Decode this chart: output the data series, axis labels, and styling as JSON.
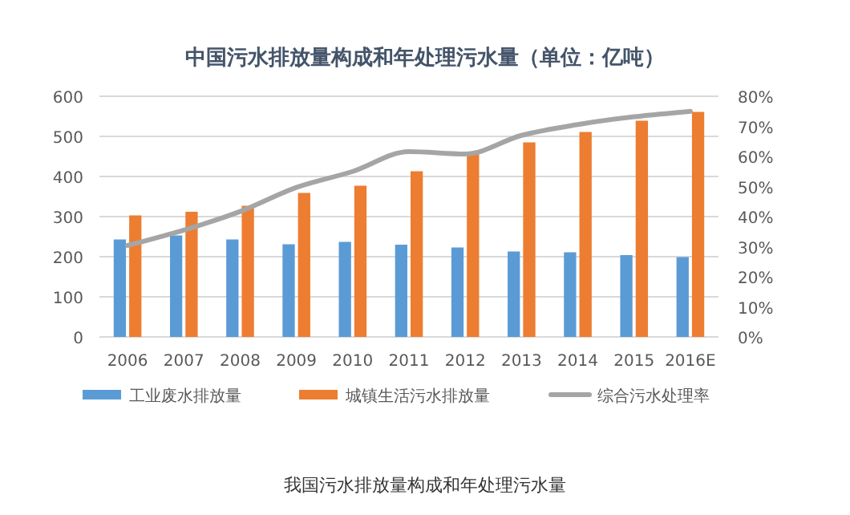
{
  "chart_data": {
    "type": "bar",
    "title": "中国污水排放量构成和年处理污水量（单位：亿吨）",
    "categories": [
      "2006",
      "2007",
      "2008",
      "2009",
      "2010",
      "2011",
      "2012",
      "2013",
      "2014",
      "2015",
      "2016E"
    ],
    "series": [
      {
        "name": "工业废水排放量",
        "color": "#5b9bd5",
        "values": [
          243,
          253,
          243,
          231,
          237,
          230,
          223,
          213,
          211,
          204,
          199
        ]
      },
      {
        "name": "城镇生活污水排放量",
        "color": "#ed7d31",
        "values": [
          303,
          312,
          327,
          359,
          377,
          413,
          456,
          485,
          511,
          539,
          561
        ]
      },
      {
        "name": "综合污水处理率",
        "type": "line",
        "axis": "y2",
        "color": "#a5a5a5",
        "values": [
          30.4,
          35.5,
          41.7,
          49.7,
          55,
          61.6,
          60.8,
          67,
          70.6,
          73.2,
          75
        ]
      }
    ],
    "ylim": [
      0,
      600
    ],
    "yticks": [
      0,
      100,
      200,
      300,
      400,
      500,
      600
    ],
    "y2lim": [
      0,
      80
    ],
    "y2ticks": [
      {
        "value": 0,
        "label": "0%"
      },
      {
        "value": 10,
        "label": "10%"
      },
      {
        "value": 20,
        "label": "20%"
      },
      {
        "value": 30,
        "label": "30%"
      },
      {
        "value": 40,
        "label": "40%"
      },
      {
        "value": 50,
        "label": "50%"
      },
      {
        "value": 60,
        "label": "60%"
      },
      {
        "value": 70,
        "label": "70%"
      },
      {
        "value": 80,
        "label": "80%"
      }
    ],
    "grid": "y",
    "legend": "bottom",
    "annotations": [
      "我国污水排放量构成和年处理污水量"
    ]
  }
}
